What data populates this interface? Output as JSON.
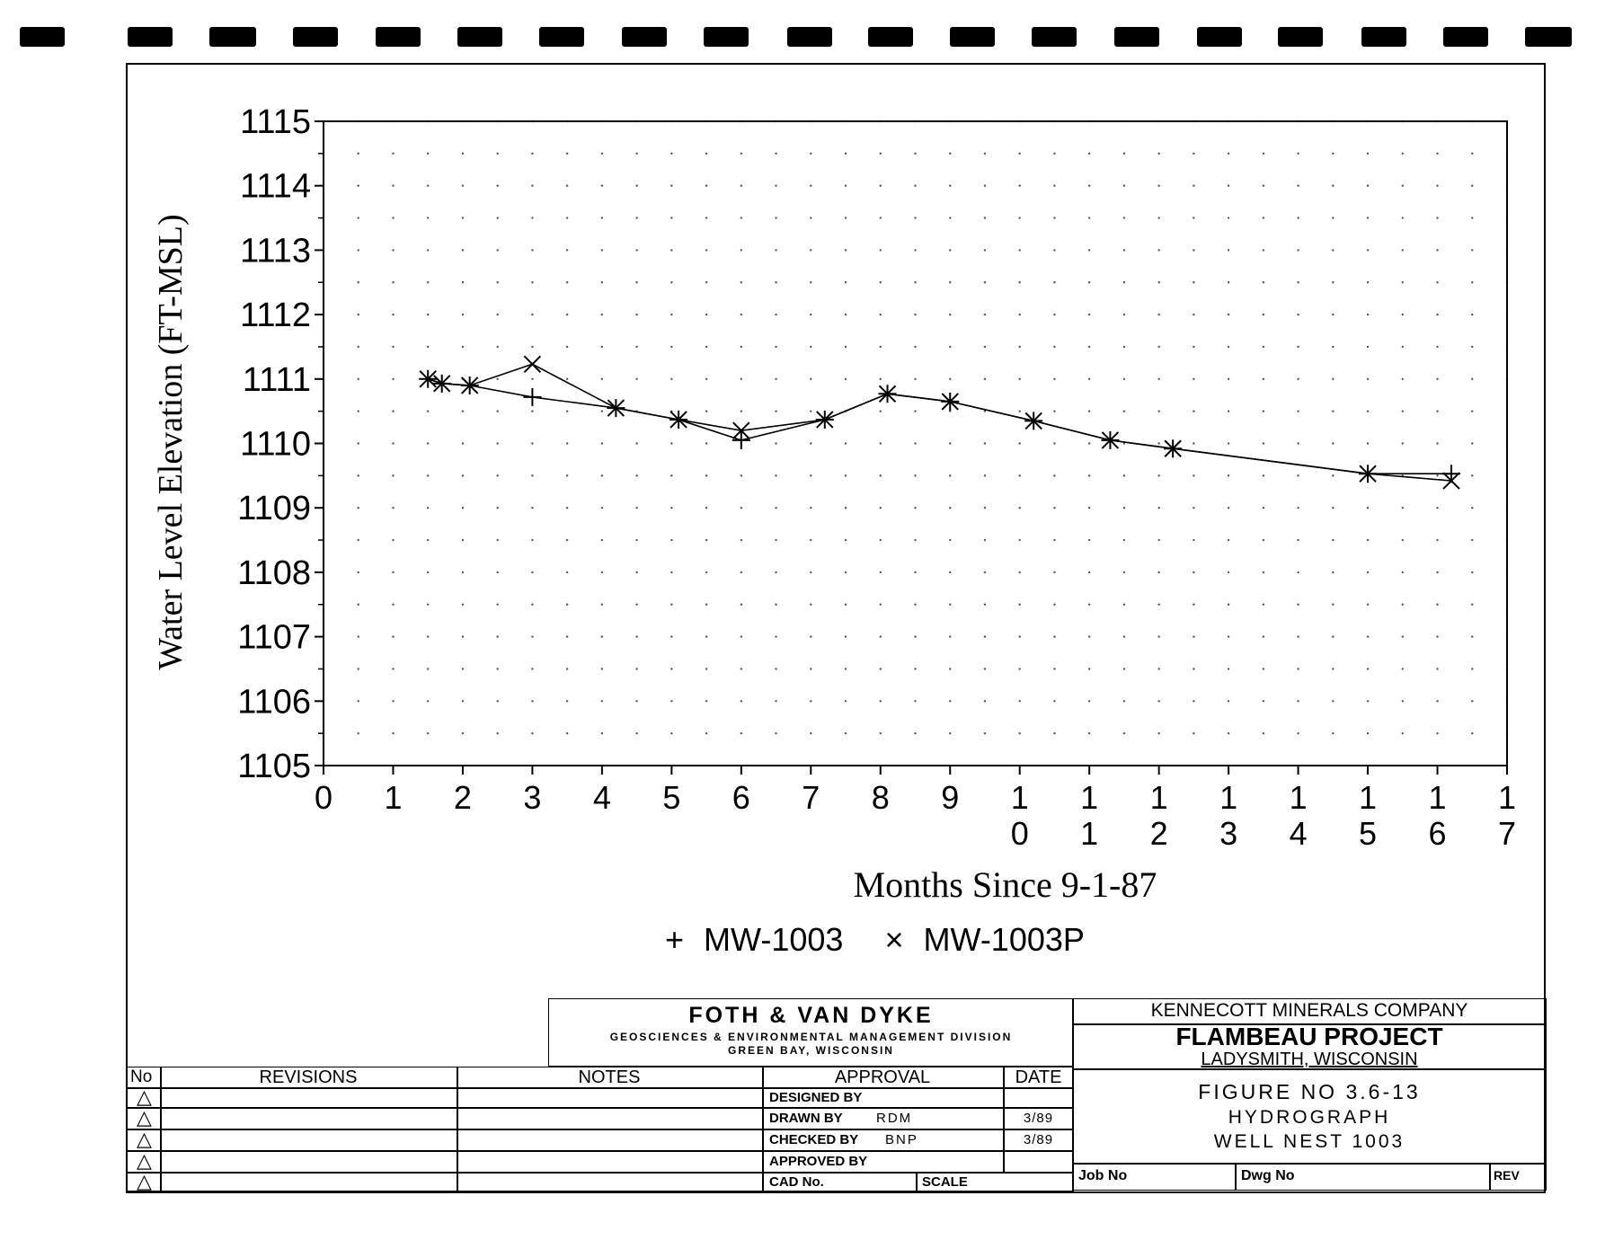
{
  "chart_data": {
    "type": "line",
    "xlabel": "Months Since 9-1-87",
    "ylabel": "Water Level Elevation (FT-MSL)",
    "xlim": [
      0,
      17
    ],
    "ylim": [
      1105,
      1115
    ],
    "x_tick_labels": [
      "0",
      "1",
      "2",
      "3",
      "4",
      "5",
      "6",
      "7",
      "8",
      "9",
      "1\n0",
      "1\n1",
      "1\n2",
      "1\n3",
      "1\n4",
      "1\n5",
      "1\n6",
      "1\n7"
    ],
    "y_tick_labels": [
      "1105",
      "1106",
      "1107",
      "1108",
      "1109",
      "1110",
      "1111",
      "1112",
      "1113",
      "1114",
      "1115"
    ],
    "grid": "dotted",
    "legend": "bottom-center",
    "series": [
      {
        "name": "MW-1003",
        "marker": "+",
        "x": [
          1.5,
          1.7,
          2.1,
          3.0,
          4.2,
          5.1,
          6.0,
          7.2,
          8.1,
          9.0,
          10.2,
          11.3,
          12.2,
          15.0,
          16.2
        ],
        "y": [
          1111.0,
          1110.93,
          1110.9,
          1110.72,
          1110.55,
          1110.37,
          1110.05,
          1110.37,
          1110.77,
          1110.65,
          1110.35,
          1110.05,
          1109.92,
          1109.53,
          1109.53
        ]
      },
      {
        "name": "MW-1003P",
        "marker": "x",
        "x": [
          1.5,
          1.7,
          2.1,
          3.0,
          4.2,
          5.1,
          6.0,
          7.2,
          8.1,
          9.0,
          10.2,
          11.3,
          12.2,
          15.0,
          16.2
        ],
        "y": [
          1111.0,
          1110.93,
          1110.9,
          1111.23,
          1110.55,
          1110.37,
          1110.2,
          1110.37,
          1110.77,
          1110.65,
          1110.35,
          1110.05,
          1109.92,
          1109.53,
          1109.42
        ]
      }
    ]
  },
  "legend": {
    "plus_symbol": "+",
    "plus_label": "MW-1003",
    "x_symbol": "×",
    "x_label": "MW-1003P"
  },
  "title_block": {
    "firm_name": "FOTH & VAN DYKE",
    "firm_division": "GEOSCIENCES & ENVIRONMENTAL MANAGEMENT DIVISION",
    "firm_city": "GREEN BAY, WISCONSIN",
    "client": "KENNECOTT MINERALS COMPANY",
    "project": "FLAMBEAU PROJECT",
    "location": "LADYSMITH, WISCONSIN",
    "figure_no": "FIGURE NO 3.6-13",
    "figure_title1": "HYDROGRAPH",
    "figure_title2": "WELL NEST 1003",
    "job_no_label": "Job No",
    "dwg_no_label": "Dwg No",
    "rev_label": "REV",
    "col_no": "No",
    "col_revisions": "REVISIONS",
    "col_notes": "NOTES",
    "col_approval": "APPROVAL",
    "col_date": "DATE",
    "designed_by": "DESIGNED BY",
    "drawn_by": "DRAWN BY",
    "drawn_by_value": "RDM",
    "drawn_date": "3/89",
    "checked_by": "CHECKED BY",
    "checked_by_value": "BNP",
    "checked_date": "3/89",
    "approved_by": "APPROVED BY",
    "cad_no": "CAD No.",
    "scale": "SCALE",
    "triangle": "△"
  }
}
